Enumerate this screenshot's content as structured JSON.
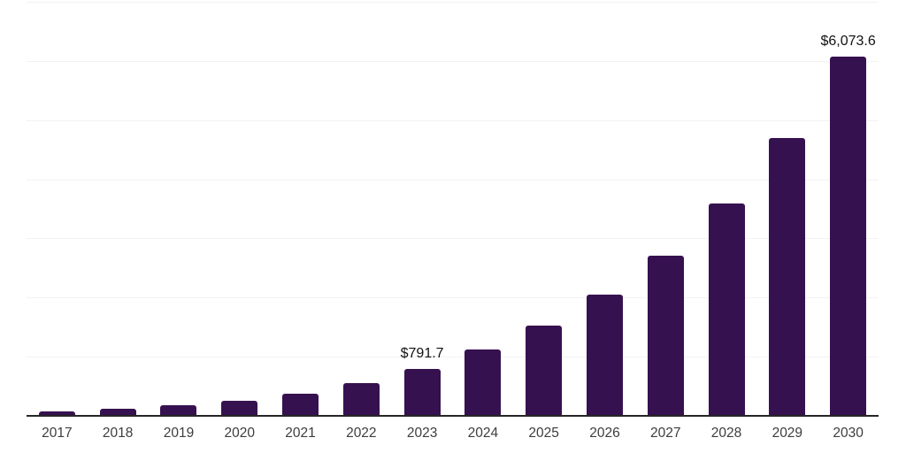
{
  "chart_data": {
    "type": "bar",
    "title": "",
    "xlabel": "",
    "ylabel": "",
    "categories": [
      "2017",
      "2018",
      "2019",
      "2020",
      "2021",
      "2022",
      "2023",
      "2024",
      "2025",
      "2026",
      "2027",
      "2028",
      "2029",
      "2030"
    ],
    "values": [
      80,
      115,
      175,
      250,
      375,
      560,
      791.7,
      1120,
      1520,
      2055,
      2710,
      3590,
      4690,
      6073.6
    ],
    "data_labels": [
      "",
      "",
      "",
      "",
      "",
      "",
      "$791.7",
      "",
      "",
      "",
      "",
      "",
      "",
      "$6,073.6"
    ],
    "ylim": [
      0,
      7000
    ],
    "gridline_interval": 1000,
    "grid": true,
    "legend_position": "none",
    "colors": {
      "bar": "#36114F",
      "axis_line": "#262626",
      "gridline": "#f2f2f2",
      "tick_label": "#3d3d3d",
      "value_label": "#111111",
      "background": "#ffffff"
    }
  }
}
